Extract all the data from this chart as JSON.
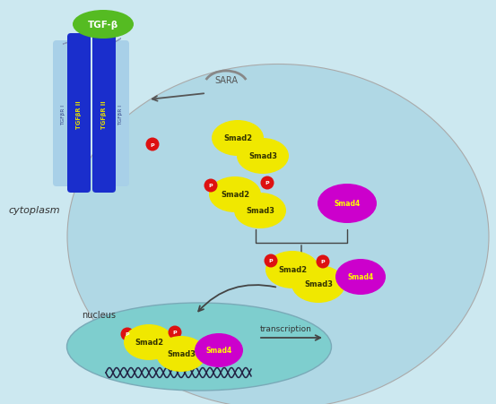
{
  "bg_color": "#cce8f0",
  "cell_color": "#b0d8e5",
  "cell_ec": "#aaaaaa",
  "nucleus_color": "#7ecece",
  "nucleus_ec": "#7aaab8",
  "tgfb_green": "#55bb22",
  "receptor_blue": "#1a2ecc",
  "receptor_light": "#a8d0e8",
  "smad_yellow": "#f0e800",
  "smad_text": "#333300",
  "smad4_magenta": "#cc00cc",
  "smad4_text": "#ffff00",
  "p_red": "#dd1111",
  "sara_gray": "#888888",
  "text_dark": "#222222",
  "text_receptor_yellow": "#e8e000",
  "text_receptor_blue": "#334488",
  "cytoplasm_label": "cytoplasm",
  "nucleus_label": "nucleus",
  "transcription_label": "transcription",
  "sara_label": "SARA",
  "tgfb_label": "TGF-β"
}
